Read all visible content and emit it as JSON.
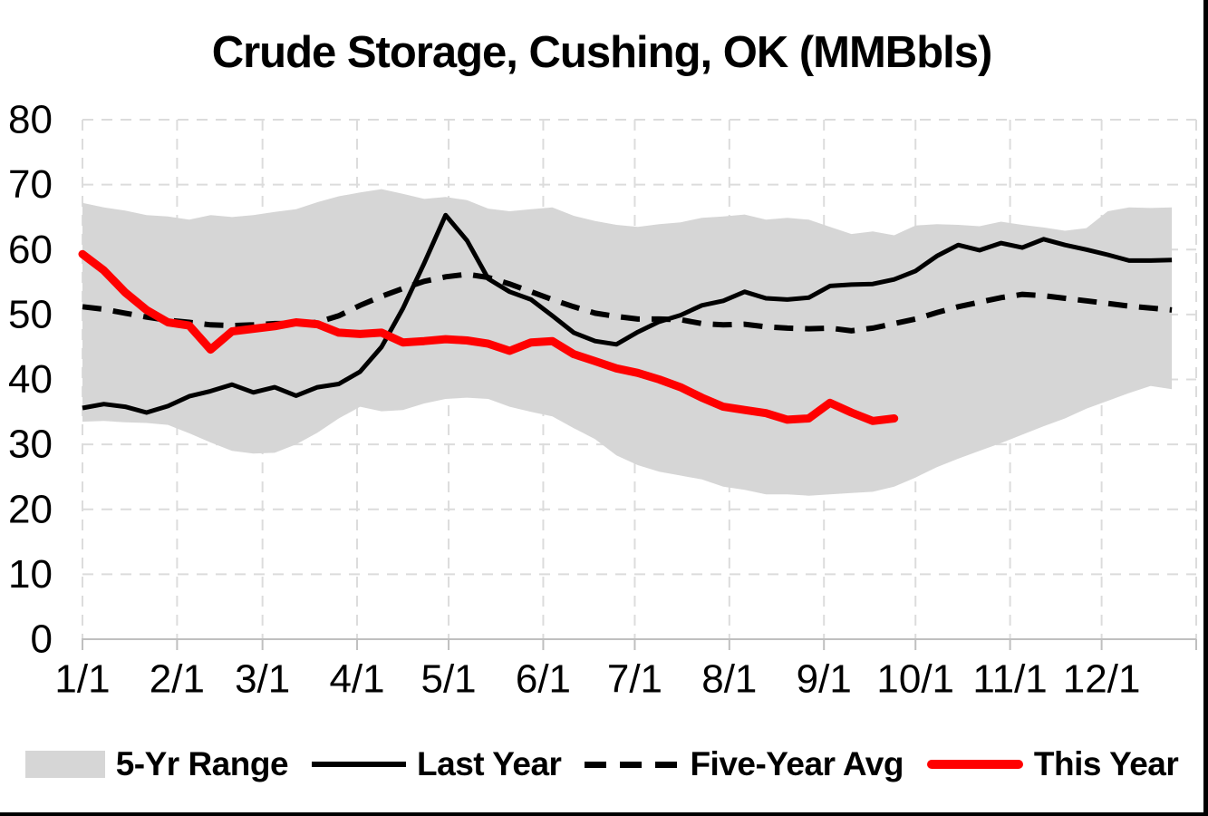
{
  "title": "Crude Storage, Cushing, OK (MMBbls)",
  "colors": {
    "this_year": "#FF0000",
    "last_year": "#000000",
    "five_year_avg": "#000000",
    "range_fill": "#D6D6D6",
    "gridline": "#DCDCDC",
    "axis_line": "#BFBFBF",
    "text": "#000000",
    "border": "#000000",
    "background": "#FFFFFF"
  },
  "y_axis": {
    "min": 0,
    "max": 80,
    "ticks": [
      0,
      10,
      20,
      30,
      40,
      50,
      60,
      70,
      80
    ]
  },
  "x_axis": {
    "tick_labels": [
      "1/1",
      "2/1",
      "3/1",
      "4/1",
      "5/1",
      "6/1",
      "7/1",
      "8/1",
      "9/1",
      "10/1",
      "11/1",
      "12/1"
    ]
  },
  "legend": {
    "items": [
      {
        "label": "5-Yr Range",
        "swatch": "area"
      },
      {
        "label": "Last Year",
        "swatch": "solid-line"
      },
      {
        "label": "Five-Year Avg",
        "swatch": "dashed-line"
      },
      {
        "label": "This Year",
        "swatch": "thick-red-line"
      }
    ]
  },
  "chart_data": {
    "type": "line",
    "title": "Crude Storage, Cushing, OK (MMBbls)",
    "units": "MMBbls",
    "ylim": [
      0,
      80
    ],
    "grid": true,
    "legend_position": "bottom",
    "x": [
      "1/1",
      "1/8",
      "1/15",
      "1/22",
      "1/29",
      "2/5",
      "2/12",
      "2/19",
      "2/26",
      "3/5",
      "3/12",
      "3/19",
      "3/26",
      "4/2",
      "4/9",
      "4/16",
      "4/23",
      "4/30",
      "5/7",
      "5/14",
      "5/21",
      "5/28",
      "6/4",
      "6/11",
      "6/18",
      "6/25",
      "7/2",
      "7/9",
      "7/16",
      "7/23",
      "7/30",
      "8/6",
      "8/13",
      "8/20",
      "8/27",
      "9/3",
      "9/10",
      "9/17",
      "9/24",
      "10/1",
      "10/8",
      "10/15",
      "10/22",
      "10/29",
      "11/5",
      "11/12",
      "11/19",
      "11/26",
      "12/3",
      "12/10",
      "12/17",
      "12/24"
    ],
    "series": [
      {
        "name": "5-Yr Range",
        "type": "band",
        "upper": [
          67.2,
          66.5,
          66.0,
          65.3,
          65.1,
          64.6,
          65.3,
          65.0,
          65.3,
          65.8,
          66.2,
          67.3,
          68.2,
          68.8,
          69.3,
          68.6,
          67.8,
          68.1,
          67.6,
          66.3,
          65.9,
          66.2,
          66.5,
          65.2,
          64.4,
          63.8,
          63.5,
          63.9,
          64.2,
          64.9,
          65.1,
          65.4,
          64.6,
          64.9,
          64.6,
          63.5,
          62.4,
          62.8,
          62.2,
          63.7,
          63.9,
          63.8,
          63.6,
          64.3,
          63.8,
          63.4,
          62.9,
          63.3,
          65.9,
          66.5,
          66.4,
          66.5
        ],
        "lower": [
          33.5,
          33.6,
          33.4,
          33.3,
          33.0,
          31.7,
          30.3,
          29.0,
          28.6,
          28.7,
          30.0,
          31.8,
          34.0,
          35.8,
          35.1,
          35.3,
          36.3,
          37.0,
          37.2,
          37.0,
          35.8,
          35.0,
          34.3,
          32.5,
          30.8,
          28.3,
          26.8,
          25.8,
          25.2,
          24.6,
          23.5,
          23.0,
          22.3,
          22.3,
          22.1,
          22.3,
          22.5,
          22.7,
          23.5,
          24.9,
          26.5,
          27.8,
          29.0,
          30.2,
          31.5,
          32.8,
          34.0,
          35.5,
          36.7,
          37.9,
          39.0,
          38.5
        ]
      },
      {
        "name": "Last Year",
        "type": "line",
        "style": "solid",
        "values": [
          35.6,
          36.2,
          35.8,
          34.9,
          35.9,
          37.4,
          38.2,
          39.2,
          38.0,
          38.8,
          37.5,
          38.8,
          39.3,
          41.2,
          45.0,
          50.9,
          57.9,
          65.3,
          61.4,
          55.5,
          53.5,
          52.3,
          49.8,
          47.2,
          45.9,
          45.4,
          47.3,
          48.9,
          49.9,
          51.4,
          52.1,
          53.5,
          52.5,
          52.3,
          52.6,
          54.4,
          54.6,
          54.7,
          55.4,
          56.7,
          59.0,
          60.7,
          59.9,
          61.0,
          60.3,
          61.6,
          60.7,
          60.0,
          59.2,
          58.3,
          58.3,
          58.4
        ]
      },
      {
        "name": "Five-Year Avg",
        "type": "line",
        "style": "dashed",
        "values": [
          51.2,
          50.8,
          50.2,
          49.6,
          49.1,
          48.8,
          48.4,
          48.3,
          48.4,
          48.6,
          48.6,
          48.8,
          49.8,
          51.4,
          52.8,
          54.0,
          55.1,
          55.8,
          56.2,
          55.7,
          54.7,
          53.5,
          52.3,
          51.2,
          50.2,
          49.7,
          49.3,
          49.3,
          49.2,
          48.6,
          48.4,
          48.5,
          48.1,
          47.9,
          47.8,
          47.9,
          47.5,
          47.9,
          48.6,
          49.3,
          50.3,
          51.2,
          51.9,
          52.6,
          53.1,
          52.9,
          52.5,
          52.1,
          51.7,
          51.3,
          51.0,
          50.7
        ]
      },
      {
        "name": "This Year",
        "type": "line",
        "style": "solid-thick",
        "values": [
          59.3,
          56.8,
          53.4,
          50.7,
          48.8,
          48.3,
          44.6,
          47.4,
          47.8,
          48.2,
          48.8,
          48.5,
          47.2,
          47.0,
          47.2,
          45.7,
          45.9,
          46.2,
          46.0,
          45.5,
          44.4,
          45.7,
          45.9,
          43.9,
          42.8,
          41.7,
          41.0,
          40.0,
          38.8,
          37.2,
          35.8,
          35.3,
          34.8,
          33.8,
          34.0,
          36.4,
          34.9,
          33.6,
          34.0,
          null,
          null,
          null,
          null,
          null,
          null,
          null,
          null,
          null,
          null,
          null,
          null,
          null
        ]
      }
    ]
  }
}
